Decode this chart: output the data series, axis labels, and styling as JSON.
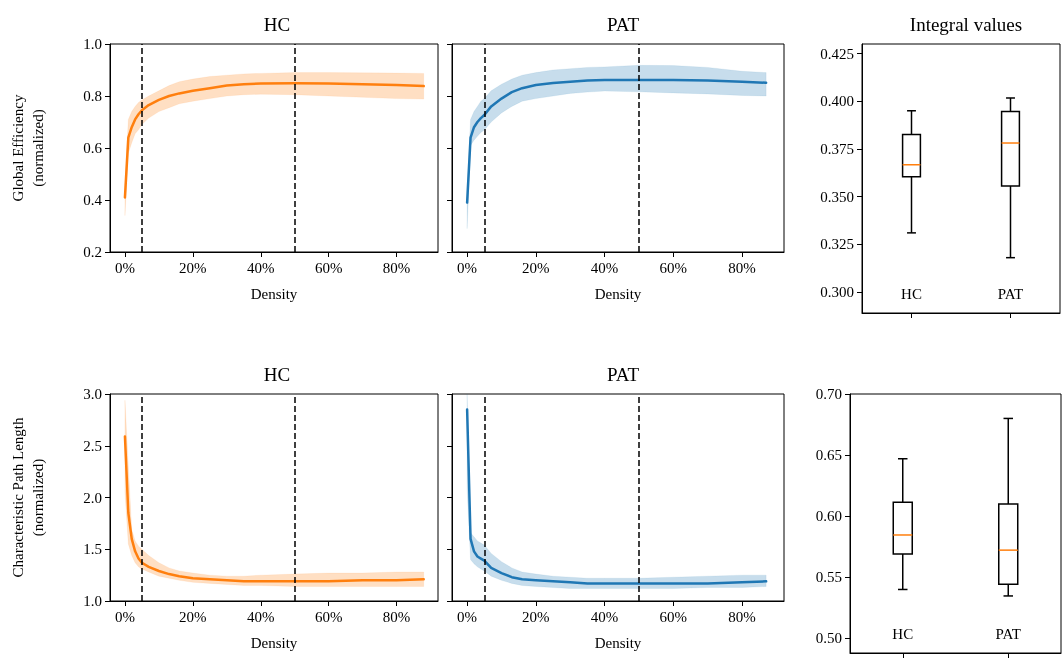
{
  "chart_data": [
    {
      "type": "line",
      "title": "HC",
      "xlabel": "Density",
      "ylabel": "Global Efficiency\n(normalized)",
      "xlim": [
        -4.4,
        92.2
      ],
      "ylim": [
        0.2,
        1.0
      ],
      "xticks": [
        {
          "value": 0,
          "label": "0%"
        },
        {
          "value": 20,
          "label": "20%"
        },
        {
          "value": 40,
          "label": "40%"
        },
        {
          "value": 60,
          "label": "60%"
        },
        {
          "value": 80,
          "label": "80%"
        }
      ],
      "yticks": [
        0.2,
        0.4,
        0.6,
        0.8,
        {
          "value": 1.0,
          "label": "1.0"
        }
      ],
      "ref_lines": [
        {
          "axis": "x",
          "value": 5,
          "color": "#000000",
          "line_style": "dashed"
        },
        {
          "axis": "x",
          "value": 50,
          "color": "#000000",
          "line_style": "dashed"
        }
      ],
      "series": [
        {
          "color": "#ff7f0e",
          "x": [
            0,
            1,
            2,
            3,
            4,
            5,
            7,
            10,
            13,
            16,
            20,
            25,
            30,
            35,
            40,
            50,
            60,
            70,
            80,
            88
          ],
          "values": [
            0.41,
            0.64,
            0.68,
            0.71,
            0.73,
            0.745,
            0.765,
            0.785,
            0.8,
            0.81,
            0.82,
            0.83,
            0.84,
            0.845,
            0.848,
            0.849,
            0.848,
            0.845,
            0.842,
            0.838
          ],
          "upper": [
            0.46,
            0.71,
            0.74,
            0.76,
            0.775,
            0.785,
            0.8,
            0.82,
            0.84,
            0.855,
            0.865,
            0.875,
            0.88,
            0.885,
            0.887,
            0.89,
            0.89,
            0.889,
            0.888,
            0.887
          ],
          "lower": [
            0.34,
            0.58,
            0.62,
            0.655,
            0.67,
            0.69,
            0.715,
            0.74,
            0.755,
            0.77,
            0.78,
            0.79,
            0.8,
            0.805,
            0.807,
            0.805,
            0.8,
            0.795,
            0.79,
            0.788
          ]
        }
      ]
    },
    {
      "type": "line",
      "title": "PAT",
      "xlabel": "Density",
      "xlim": [
        -4.4,
        92.2
      ],
      "ylim": [
        0.2,
        1.0
      ],
      "tick_labels": "x",
      "xticks": [
        {
          "value": 0,
          "label": "0%"
        },
        {
          "value": 20,
          "label": "20%"
        },
        {
          "value": 40,
          "label": "40%"
        },
        {
          "value": 60,
          "label": "60%"
        },
        {
          "value": 80,
          "label": "80%"
        }
      ],
      "yticks": [
        0.2,
        0.4,
        0.6,
        0.8,
        1.0
      ],
      "ref_lines": [
        {
          "axis": "x",
          "value": 5,
          "color": "#000000",
          "line_style": "dashed"
        },
        {
          "axis": "x",
          "value": 50,
          "color": "#000000",
          "line_style": "dashed"
        }
      ],
      "series": [
        {
          "color": "#1f77b4",
          "x": [
            0,
            1,
            2,
            3,
            4,
            5,
            7,
            10,
            13,
            16,
            20,
            25,
            30,
            35,
            40,
            50,
            60,
            70,
            80,
            87
          ],
          "values": [
            0.39,
            0.64,
            0.68,
            0.7,
            0.715,
            0.727,
            0.76,
            0.79,
            0.815,
            0.83,
            0.842,
            0.85,
            0.855,
            0.86,
            0.862,
            0.862,
            0.862,
            0.86,
            0.855,
            0.851
          ],
          "upper": [
            0.44,
            0.71,
            0.74,
            0.76,
            0.78,
            0.79,
            0.82,
            0.845,
            0.865,
            0.88,
            0.89,
            0.9,
            0.905,
            0.91,
            0.912,
            0.918,
            0.917,
            0.91,
            0.895,
            0.89
          ],
          "lower": [
            0.29,
            0.61,
            0.63,
            0.645,
            0.66,
            0.669,
            0.7,
            0.735,
            0.76,
            0.78,
            0.79,
            0.8,
            0.81,
            0.815,
            0.819,
            0.816,
            0.812,
            0.808,
            0.802,
            0.8
          ]
        }
      ]
    },
    {
      "type": "box",
      "title": "Integral values",
      "categories": [
        "HC",
        "PAT"
      ],
      "ylim": [
        0.289,
        0.43
      ],
      "color": "#000000",
      "yticks": [
        {
          "value": 0.3,
          "label": "0.300"
        },
        0.325,
        {
          "value": 0.35,
          "label": "0.350"
        },
        0.375,
        {
          "value": 0.4,
          "label": "0.400"
        },
        0.425
      ],
      "boxes": [
        {
          "low": 0.331,
          "q1": 0.3604,
          "median": 0.3667,
          "q3": 0.3826,
          "high": 0.395
        },
        {
          "low": 0.318,
          "q1": 0.3556,
          "median": 0.3781,
          "q3": 0.3946,
          "high": 0.4017
        }
      ]
    },
    {
      "type": "line",
      "title": "HC",
      "xlabel": "Density",
      "ylabel": "Characteristic Path Length\n(normalized)",
      "xlim": [
        -4.4,
        92.2
      ],
      "ylim": [
        1.0,
        3.0
      ],
      "xticks": [
        {
          "value": 0,
          "label": "0%"
        },
        {
          "value": 20,
          "label": "20%"
        },
        {
          "value": 40,
          "label": "40%"
        },
        {
          "value": 60,
          "label": "60%"
        },
        {
          "value": 80,
          "label": "80%"
        }
      ],
      "yticks": [
        {
          "value": 1,
          "label": "1.0"
        },
        1.5,
        {
          "value": 2,
          "label": "2.0"
        },
        2.5,
        {
          "value": 3,
          "label": "3.0"
        }
      ],
      "ref_lines": [
        {
          "axis": "x",
          "value": 5,
          "color": "#000000",
          "line_style": "dashed"
        },
        {
          "axis": "x",
          "value": 50,
          "color": "#000000",
          "line_style": "dashed"
        }
      ],
      "series": [
        {
          "color": "#ff7f0e",
          "x": [
            0,
            1,
            2,
            3,
            4,
            5,
            7,
            10,
            13,
            16,
            20,
            25,
            30,
            35,
            40,
            50,
            60,
            70,
            80,
            88
          ],
          "values": [
            2.59,
            1.85,
            1.6,
            1.48,
            1.41,
            1.37,
            1.33,
            1.29,
            1.26,
            1.24,
            1.22,
            1.21,
            1.2,
            1.19,
            1.19,
            1.19,
            1.19,
            1.2,
            1.2,
            1.21
          ],
          "upper": [
            2.94,
            2.3,
            1.69,
            1.58,
            1.53,
            1.5,
            1.44,
            1.37,
            1.32,
            1.29,
            1.27,
            1.25,
            1.24,
            1.24,
            1.25,
            1.26,
            1.27,
            1.27,
            1.28,
            1.28
          ],
          "lower": [
            2.05,
            1.55,
            1.44,
            1.37,
            1.33,
            1.31,
            1.28,
            1.24,
            1.22,
            1.2,
            1.18,
            1.17,
            1.16,
            1.15,
            1.15,
            1.14,
            1.14,
            1.14,
            1.14,
            1.14
          ]
        }
      ]
    },
    {
      "type": "line",
      "title": "PAT",
      "xlabel": "Density",
      "xlim": [
        -4.4,
        92.2
      ],
      "ylim": [
        1.0,
        3.0
      ],
      "tick_labels": "x",
      "xticks": [
        {
          "value": 0,
          "label": "0%"
        },
        {
          "value": 20,
          "label": "20%"
        },
        {
          "value": 40,
          "label": "40%"
        },
        {
          "value": 60,
          "label": "60%"
        },
        {
          "value": 80,
          "label": "80%"
        }
      ],
      "yticks": [
        1,
        1.5,
        2,
        2.5,
        3
      ],
      "ref_lines": [
        {
          "axis": "x",
          "value": 5,
          "color": "#000000",
          "line_style": "dashed"
        },
        {
          "axis": "x",
          "value": 50,
          "color": "#000000",
          "line_style": "dashed"
        }
      ],
      "series": [
        {
          "color": "#1f77b4",
          "x": [
            0,
            1,
            2,
            3,
            4,
            5,
            7,
            10,
            13,
            16,
            20,
            25,
            30,
            35,
            40,
            50,
            60,
            70,
            80,
            87
          ],
          "values": [
            2.85,
            1.6,
            1.48,
            1.43,
            1.41,
            1.39,
            1.32,
            1.27,
            1.23,
            1.21,
            1.2,
            1.19,
            1.18,
            1.17,
            1.17,
            1.17,
            1.17,
            1.17,
            1.18,
            1.19
          ],
          "upper": [
            3.0,
            1.66,
            1.62,
            1.58,
            1.56,
            1.54,
            1.46,
            1.38,
            1.32,
            1.28,
            1.26,
            1.24,
            1.23,
            1.22,
            1.22,
            1.22,
            1.23,
            1.24,
            1.25,
            1.25
          ],
          "lower": [
            2.08,
            1.4,
            1.36,
            1.33,
            1.31,
            1.29,
            1.24,
            1.2,
            1.17,
            1.15,
            1.14,
            1.13,
            1.12,
            1.12,
            1.12,
            1.12,
            1.12,
            1.13,
            1.13,
            1.14
          ]
        }
      ]
    },
    {
      "type": "box",
      "categories": [
        "HC",
        "PAT"
      ],
      "ylim": [
        0.488,
        0.7
      ],
      "color": "#000000",
      "yticks": [
        {
          "value": 0.5,
          "label": "0.50"
        },
        0.55,
        {
          "value": 0.6,
          "label": "0.60"
        },
        0.65,
        {
          "value": 0.7,
          "label": "0.70"
        }
      ],
      "boxes": [
        {
          "low": 0.54,
          "q1": 0.569,
          "median": 0.5846,
          "q3": 0.6114,
          "high": 0.647
        },
        {
          "low": 0.5347,
          "q1": 0.5443,
          "median": 0.5722,
          "q3": 0.61,
          "high": 0.68
        }
      ]
    }
  ]
}
